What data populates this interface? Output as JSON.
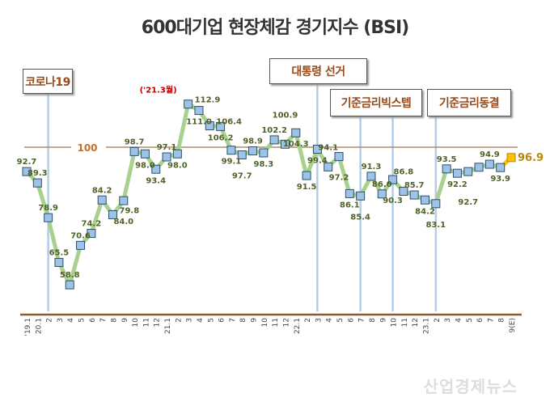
{
  "chart_data": {
    "type": "line",
    "title": "600대기업 현장체감 경기지수 (BSI)",
    "categories": [
      "'19.1",
      "20.1",
      "2",
      "3",
      "4",
      "5",
      "6",
      "7",
      "8",
      "9",
      "10",
      "11",
      "12",
      "21.1",
      "2",
      "3",
      "4",
      "5",
      "6",
      "7",
      "8",
      "9",
      "10",
      "11",
      "12",
      "22.1",
      "2",
      "3",
      "4",
      "5",
      "6",
      "7",
      "8",
      "9",
      "10",
      "11",
      "12",
      "23.1",
      "2",
      "3",
      "4",
      "5",
      "6",
      "7",
      "8",
      "9(E)"
    ],
    "values": [
      92.7,
      89.3,
      78.9,
      65.5,
      58.8,
      70.6,
      74.2,
      84.2,
      79.8,
      84.0,
      98.7,
      98.0,
      93.4,
      97.1,
      98.0,
      112.9,
      111.0,
      106.4,
      106.2,
      99.1,
      97.7,
      98.9,
      98.3,
      102.2,
      100.9,
      104.3,
      91.5,
      99.4,
      94.1,
      97.2,
      86.1,
      85.4,
      91.3,
      86.0,
      90.3,
      86.8,
      85.7,
      84.2,
      83.1,
      93.5,
      92.2,
      92.7,
      94.0,
      94.9,
      93.9,
      96.9
    ],
    "data_labels": [
      "92.7",
      "89.3",
      "78.9",
      "65.5",
      "58.8",
      "70.6",
      "74.2",
      "84.2",
      "79.8",
      "84.0",
      "98.7",
      "98.0",
      "93.4",
      "97.1",
      "98.0",
      "112.9",
      "111.0",
      "106.4",
      "106.2",
      "99.1",
      "97.7",
      "98.9",
      "98.3",
      "102.2",
      "100.9",
      "104.3",
      "91.5",
      "99.4",
      "94.1",
      "97.2",
      "86.1",
      "85.4",
      "91.3",
      "86.0",
      "90.3",
      "86.8",
      "85.7",
      "84.2",
      "83.1",
      "93.5",
      "92.2",
      "92.7",
      "",
      "94.9",
      "93.9",
      "96.9"
    ],
    "estimate_point": "9(E)",
    "reference_line": {
      "value": 100,
      "label": "100"
    },
    "peak_annotation": {
      "label": "('21.3월)",
      "category_index": 15
    },
    "events": [
      {
        "label": "코로나19",
        "category_index": 2
      },
      {
        "label": "대통령 선거",
        "category_index": 27
      },
      {
        "label": "기준금리빅스텝",
        "category_index": 31
      },
      {
        "label": "기준금리동결",
        "category_index": 38
      }
    ],
    "events_extra_line_index": 34,
    "grid": false,
    "colors": {
      "line": "#a9d18e",
      "marker": "#9dc3e6",
      "estimate_marker": "#ffc000",
      "estimate_label": "#b8860b",
      "labels": "#4f6228",
      "reference": "#b08a6a",
      "axis": "#8b5a2b",
      "event_line": "#b4cde4",
      "event_text": "#9a4a1a",
      "annotation": "#c00000"
    }
  },
  "watermark": "산업경제뉴스"
}
